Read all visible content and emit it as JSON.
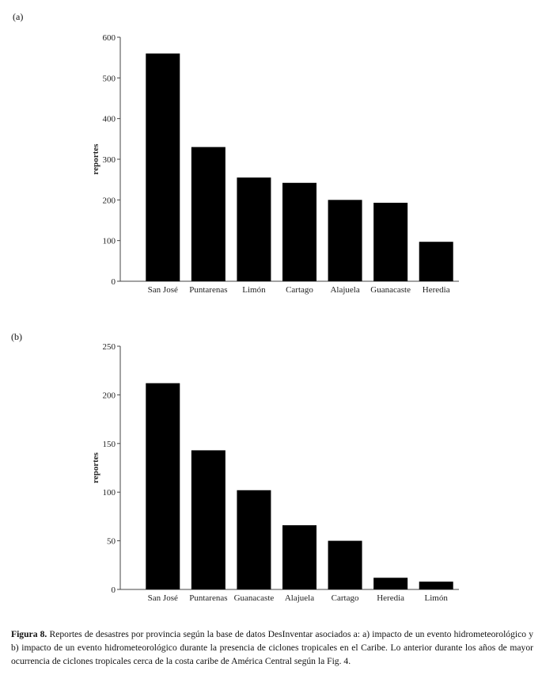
{
  "chart_data": [
    {
      "panel": "(a)",
      "type": "bar",
      "categories": [
        "San José",
        "Puntarenas",
        "Limón",
        "Cartago",
        "Alajuela",
        "Guanacaste",
        "Heredia"
      ],
      "values": [
        560,
        330,
        255,
        242,
        200,
        193,
        97
      ],
      "ylabel": "reportes",
      "ylim": [
        0,
        600
      ],
      "yticks": [
        0,
        100,
        200,
        300,
        400,
        500,
        600
      ],
      "grid": false,
      "color": "#000000"
    },
    {
      "panel": "(b)",
      "type": "bar",
      "categories": [
        "San José",
        "Puntarenas",
        "Guanacaste",
        "Alajuela",
        "Cartago",
        "Heredia",
        "Limón"
      ],
      "values": [
        212,
        143,
        102,
        66,
        50,
        12,
        8
      ],
      "ylabel": "reportes",
      "ylim": [
        0,
        250
      ],
      "yticks": [
        0,
        50,
        100,
        150,
        200,
        250
      ],
      "grid": false,
      "color": "#000000"
    }
  ],
  "caption": {
    "label": "Figura 8.",
    "text": " Reportes de desastres por provincia según la base de datos DesInventar asociados a: a) impacto de un evento hidrometeorológico y b) impacto de un evento hidrometeorológico durante la presencia de ciclones tropicales en el Caribe. Lo anterior durante los años de mayor ocurrencia de ciclones tropicales cerca de la costa caribe de América Central según la Fig. 4."
  }
}
